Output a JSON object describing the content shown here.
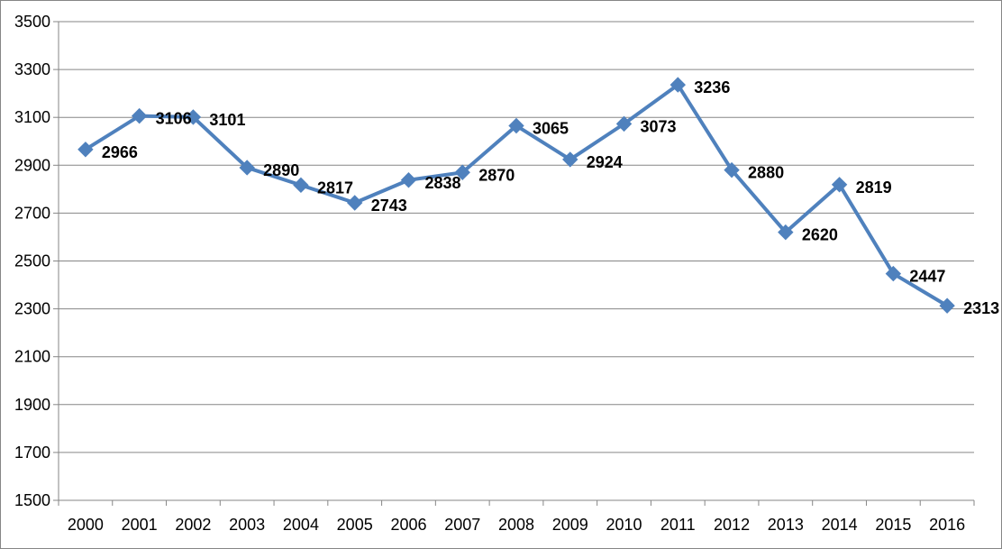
{
  "chart_data": {
    "type": "line",
    "categories": [
      "2000",
      "2001",
      "2002",
      "2003",
      "2004",
      "2005",
      "2006",
      "2007",
      "2008",
      "2009",
      "2010",
      "2011",
      "2012",
      "2013",
      "2014",
      "2015",
      "2016"
    ],
    "series": [
      {
        "values": [
          2966,
          3106,
          3101,
          2890,
          2817,
          2743,
          2838,
          2870,
          3065,
          2924,
          3073,
          3236,
          2880,
          2620,
          2819,
          2447,
          2313
        ]
      }
    ],
    "ylim": [
      1500,
      3500
    ],
    "yticks": [
      1500,
      1700,
      1900,
      2100,
      2300,
      2500,
      2700,
      2900,
      3100,
      3300,
      3500
    ],
    "grid": true,
    "legend": "none",
    "marker": "diamond",
    "data_labels": true,
    "colors": {
      "line": "#4F81BD",
      "grid": "#868686"
    }
  }
}
